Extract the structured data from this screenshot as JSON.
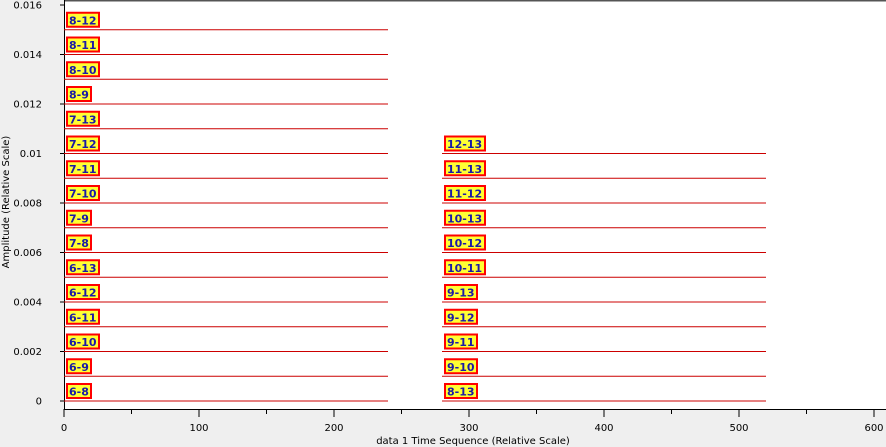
{
  "chart_data": {
    "type": "line",
    "title": "",
    "xlabel": "data 1 Time Sequence (Relative Scale)",
    "ylabel": "Amplitude (Relative Scale)",
    "xlim": [
      0,
      600
    ],
    "ylim": [
      0,
      0.016
    ],
    "x_ticks": [
      "0",
      "100",
      "200",
      "300",
      "400",
      "500",
      "600"
    ],
    "y_ticks": [
      "0",
      "0.002",
      "0.004",
      "0.006",
      "0.008",
      "0.01",
      "0.012",
      "0.014",
      "0.016"
    ],
    "grid": false,
    "colors": {
      "trace": "#cc0000",
      "label_bg": "#ffff33",
      "label_border": "#ff0000",
      "label_text": "#1a1aa6"
    },
    "series": [
      {
        "name": "6-8",
        "x": [
          0,
          240
        ],
        "y": [
          0.0,
          0.0
        ]
      },
      {
        "name": "6-9",
        "x": [
          0,
          240
        ],
        "y": [
          0.001,
          0.001
        ]
      },
      {
        "name": "6-10",
        "x": [
          0,
          240
        ],
        "y": [
          0.002,
          0.002
        ]
      },
      {
        "name": "6-11",
        "x": [
          0,
          240
        ],
        "y": [
          0.003,
          0.003
        ]
      },
      {
        "name": "6-12",
        "x": [
          0,
          240
        ],
        "y": [
          0.004,
          0.004
        ]
      },
      {
        "name": "6-13",
        "x": [
          0,
          240
        ],
        "y": [
          0.005,
          0.005
        ]
      },
      {
        "name": "7-8",
        "x": [
          0,
          240
        ],
        "y": [
          0.006,
          0.006
        ]
      },
      {
        "name": "7-9",
        "x": [
          0,
          240
        ],
        "y": [
          0.007,
          0.007
        ]
      },
      {
        "name": "7-10",
        "x": [
          0,
          240
        ],
        "y": [
          0.008,
          0.008
        ]
      },
      {
        "name": "7-11",
        "x": [
          0,
          240
        ],
        "y": [
          0.009,
          0.009
        ]
      },
      {
        "name": "7-12",
        "x": [
          0,
          240
        ],
        "y": [
          0.01,
          0.01
        ]
      },
      {
        "name": "7-13",
        "x": [
          0,
          240
        ],
        "y": [
          0.011,
          0.011
        ]
      },
      {
        "name": "8-9",
        "x": [
          0,
          240
        ],
        "y": [
          0.012,
          0.012
        ]
      },
      {
        "name": "8-10",
        "x": [
          0,
          240
        ],
        "y": [
          0.013,
          0.013
        ]
      },
      {
        "name": "8-11",
        "x": [
          0,
          240
        ],
        "y": [
          0.014,
          0.014
        ]
      },
      {
        "name": "8-12",
        "x": [
          0,
          240
        ],
        "y": [
          0.015,
          0.015
        ]
      },
      {
        "name": "8-13",
        "x": [
          280,
          520
        ],
        "y": [
          0.0,
          0.0
        ]
      },
      {
        "name": "9-10",
        "x": [
          280,
          520
        ],
        "y": [
          0.001,
          0.001
        ]
      },
      {
        "name": "9-11",
        "x": [
          280,
          520
        ],
        "y": [
          0.002,
          0.002
        ]
      },
      {
        "name": "9-12",
        "x": [
          280,
          520
        ],
        "y": [
          0.003,
          0.003
        ]
      },
      {
        "name": "9-13",
        "x": [
          280,
          520
        ],
        "y": [
          0.004,
          0.004
        ]
      },
      {
        "name": "10-11",
        "x": [
          280,
          520
        ],
        "y": [
          0.005,
          0.005
        ]
      },
      {
        "name": "10-12",
        "x": [
          280,
          520
        ],
        "y": [
          0.006,
          0.006
        ]
      },
      {
        "name": "10-13",
        "x": [
          280,
          520
        ],
        "y": [
          0.007,
          0.007
        ]
      },
      {
        "name": "11-12",
        "x": [
          280,
          520
        ],
        "y": [
          0.008,
          0.008
        ]
      },
      {
        "name": "11-13",
        "x": [
          280,
          520
        ],
        "y": [
          0.009,
          0.009
        ]
      },
      {
        "name": "12-13",
        "x": [
          280,
          520
        ],
        "y": [
          0.01,
          0.01
        ]
      }
    ]
  }
}
